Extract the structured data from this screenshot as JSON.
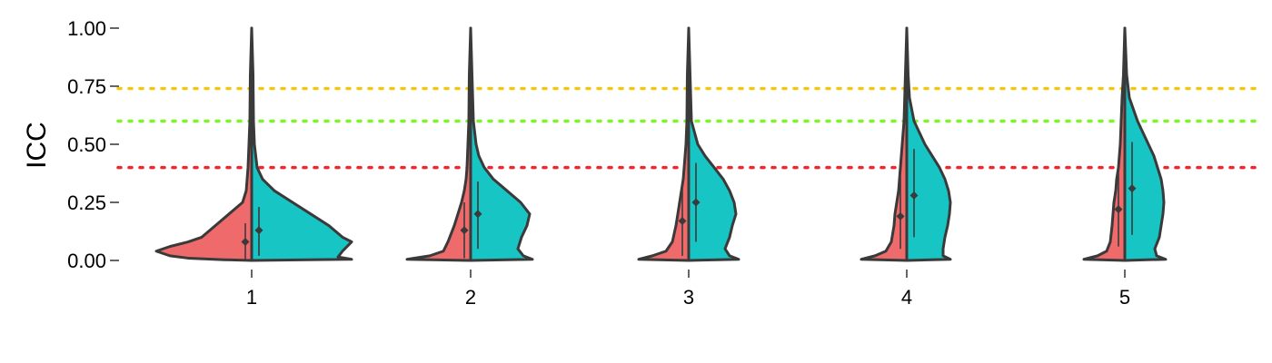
{
  "chart_data": {
    "type": "split-violin",
    "ylabel": "ICC",
    "xlabel": "",
    "ylim": [
      0,
      1
    ],
    "yticks": [
      "0.00",
      "0.25",
      "0.50",
      "0.75",
      "1.00"
    ],
    "categories": [
      "1",
      "2",
      "3",
      "4",
      "5"
    ],
    "colors": {
      "left": "#ef6b6b",
      "right": "#17c5c5",
      "outline": "#3a3a3a"
    },
    "reference_lines": [
      {
        "y": 0.74,
        "color": "#f2c80f",
        "style": "dotted"
      },
      {
        "y": 0.6,
        "color": "#7cf52a",
        "style": "dotted"
      },
      {
        "y": 0.4,
        "color": "#f2252f",
        "style": "dotted"
      }
    ],
    "series": [
      {
        "side": "left",
        "means": [
          0.08,
          0.13,
          0.17,
          0.19,
          0.22
        ],
        "ranges": [
          [
            0.0,
            0.16
          ],
          [
            0.01,
            0.25
          ],
          [
            0.02,
            0.31
          ],
          [
            0.05,
            0.36
          ],
          [
            0.06,
            0.4
          ]
        ]
      },
      {
        "side": "right",
        "means": [
          0.13,
          0.2,
          0.25,
          0.28,
          0.31
        ],
        "ranges": [
          [
            0.02,
            0.23
          ],
          [
            0.05,
            0.34
          ],
          [
            0.08,
            0.42
          ],
          [
            0.1,
            0.48
          ],
          [
            0.11,
            0.51
          ]
        ]
      }
    ]
  }
}
